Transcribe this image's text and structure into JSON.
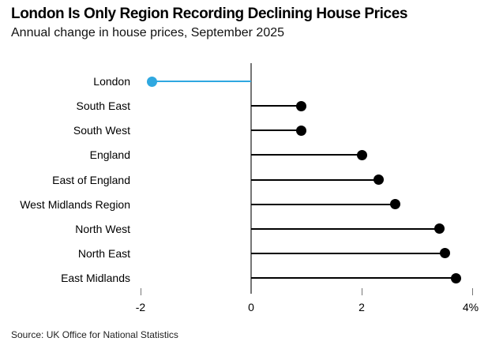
{
  "header": {
    "title": "London Is Only Region Recording Declining House Prices",
    "subtitle": "Annual change in house prices, September 2025"
  },
  "footer": {
    "source": "Source: UK Office for National Statistics"
  },
  "colors": {
    "accent_blue": "#2FA8E0",
    "series_black": "#000000",
    "axis_gray": "#767676"
  },
  "chart_data": {
    "type": "bar",
    "variant": "horizontal-lollipop",
    "title": "London Is Only Region Recording Declining House Prices",
    "subtitle": "Annual change in house prices, September 2025",
    "categories": [
      "London",
      "South East",
      "South West",
      "England",
      "East of England",
      "West Midlands Region",
      "North West",
      "North East",
      "East Midlands"
    ],
    "values": [
      -1.8,
      0.9,
      0.9,
      2.0,
      2.3,
      2.6,
      3.4,
      3.5,
      3.7
    ],
    "unit": "%",
    "xlabel": "",
    "ylabel": "",
    "xlim": [
      -2,
      4
    ],
    "xticks": [
      -2,
      0,
      2,
      4
    ],
    "xtick_labels": [
      "-2",
      "0",
      "2",
      "4%"
    ],
    "highlight_category": "London",
    "highlight_color": "#2FA8E0",
    "series_color": "#000000",
    "grid": "off",
    "legend": "none",
    "source": "Source: UK Office for National Statistics"
  }
}
